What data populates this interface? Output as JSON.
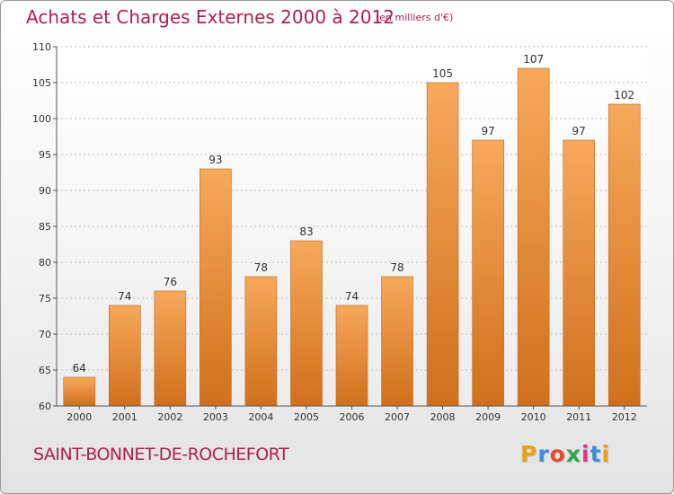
{
  "header": {
    "title": "Achats et Charges Externes 2000 à 2012",
    "unit_note": "(en milliers d'€)"
  },
  "footer": {
    "commune": "SAINT-BONNET-DE-ROCHEFORT",
    "brand": "Proxiti",
    "brand_letters": [
      {
        "char": "P",
        "color": "#e8a020"
      },
      {
        "char": "r",
        "color": "#3a8fd8"
      },
      {
        "char": "o",
        "color": "#e05030"
      },
      {
        "char": "x",
        "color": "#2ea84a"
      },
      {
        "char": "i",
        "color": "#d83a8a"
      },
      {
        "char": "t",
        "color": "#3a8fd8"
      },
      {
        "char": "i",
        "color": "#e8a020"
      }
    ]
  },
  "colors": {
    "title": "#b0204e",
    "bar_light": "#f7a85a",
    "bar_dark": "#d0701c",
    "axis": "#555555",
    "grid": "#bdbdbd"
  },
  "chart_data": {
    "type": "bar",
    "categories": [
      "2000",
      "2001",
      "2002",
      "2003",
      "2004",
      "2005",
      "2006",
      "2007",
      "2008",
      "2009",
      "2010",
      "2011",
      "2012"
    ],
    "values": [
      64,
      74,
      76,
      93,
      78,
      83,
      74,
      78,
      105,
      97,
      107,
      97,
      102
    ],
    "title": "Achats et Charges Externes 2000 à 2012",
    "ylim": [
      60,
      110
    ],
    "yticks": [
      60,
      65,
      70,
      75,
      80,
      85,
      90,
      95,
      100,
      105,
      110
    ],
    "grid": true,
    "data_labels": true
  }
}
